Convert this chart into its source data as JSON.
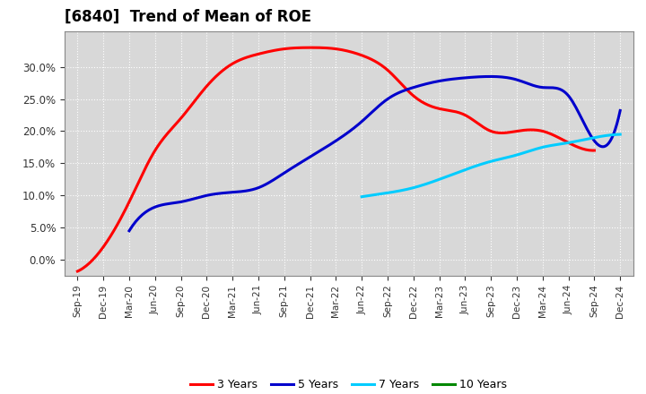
{
  "title": "[6840]  Trend of Mean of ROE",
  "ylim": [
    -0.025,
    0.355
  ],
  "background_color": "#ffffff",
  "plot_bg_color": "#d8d8d8",
  "grid_color": "#ffffff",
  "title_fontsize": 12,
  "legend_labels": [
    "3 Years",
    "5 Years",
    "7 Years",
    "10 Years"
  ],
  "legend_colors": [
    "#ff0000",
    "#0000cc",
    "#00ccff",
    "#008800"
  ],
  "x_labels": [
    "Sep-19",
    "Dec-19",
    "Mar-20",
    "Jun-20",
    "Sep-20",
    "Dec-20",
    "Mar-21",
    "Jun-21",
    "Sep-21",
    "Dec-21",
    "Mar-22",
    "Jun-22",
    "Sep-22",
    "Dec-22",
    "Mar-23",
    "Jun-23",
    "Sep-23",
    "Dec-23",
    "Mar-24",
    "Jun-24",
    "Sep-24",
    "Dec-24"
  ],
  "series_3yr": {
    "x": [
      0,
      1,
      2,
      3,
      4,
      5,
      6,
      7,
      8,
      9,
      10,
      11,
      12,
      13,
      14,
      15,
      16,
      17,
      18,
      19,
      20
    ],
    "y": [
      -0.018,
      0.02,
      0.09,
      0.17,
      0.22,
      0.27,
      0.305,
      0.32,
      0.328,
      0.33,
      0.328,
      0.318,
      0.295,
      0.255,
      0.235,
      0.225,
      0.2,
      0.2,
      0.2,
      0.182,
      0.17
    ]
  },
  "series_5yr": {
    "x": [
      2,
      3,
      4,
      5,
      6,
      7,
      8,
      9,
      10,
      11,
      12,
      13,
      14,
      15,
      16,
      17,
      18,
      19,
      20,
      21
    ],
    "y": [
      0.045,
      0.082,
      0.09,
      0.1,
      0.105,
      0.112,
      0.135,
      0.16,
      0.185,
      0.215,
      0.25,
      0.268,
      0.278,
      0.283,
      0.285,
      0.28,
      0.268,
      0.255,
      0.185,
      0.232
    ]
  },
  "series_7yr": {
    "x": [
      11,
      12,
      13,
      14,
      15,
      16,
      17,
      18,
      19,
      20,
      21
    ],
    "y": [
      0.098,
      0.104,
      0.112,
      0.125,
      0.14,
      0.153,
      0.163,
      0.175,
      0.182,
      0.19,
      0.195
    ]
  },
  "series_10yr": {
    "x": [],
    "y": []
  },
  "yticks": [
    0.0,
    0.05,
    0.1,
    0.15,
    0.2,
    0.25,
    0.3
  ]
}
